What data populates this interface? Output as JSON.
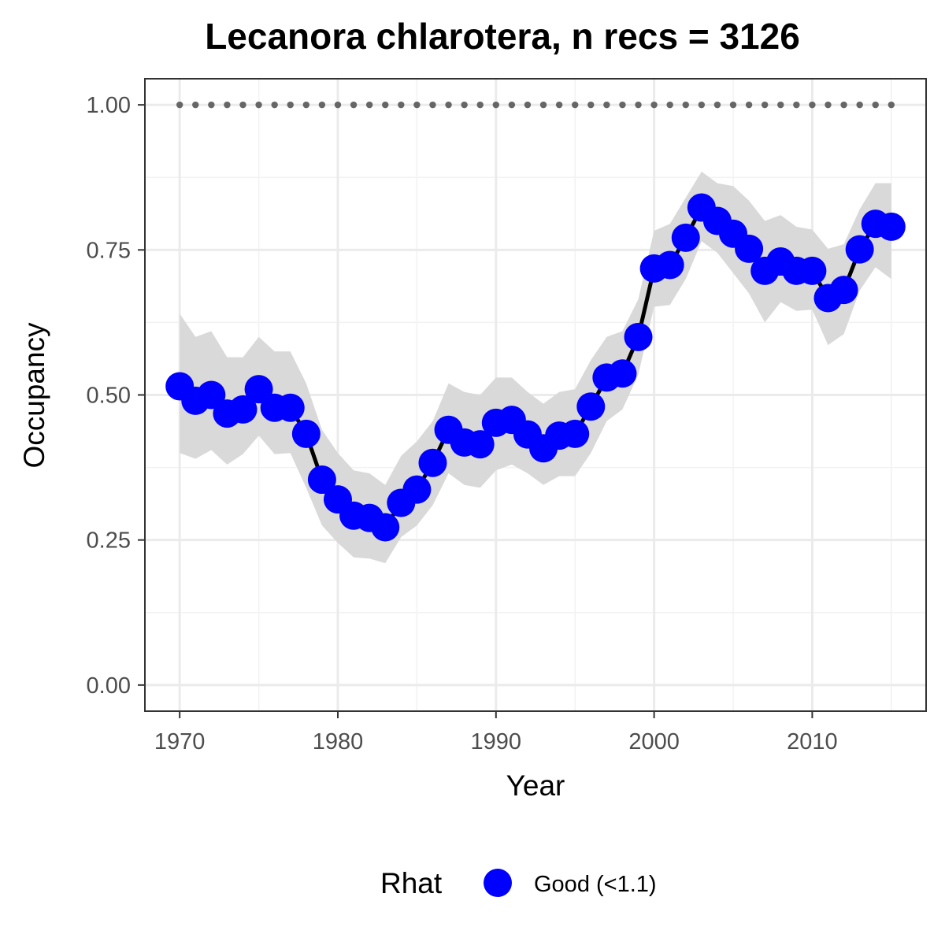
{
  "chart_data": {
    "type": "line",
    "title": "Lecanora chlarotera, n recs = 3126",
    "xlabel": "Year",
    "ylabel": "Occupancy",
    "xlim": [
      1967.8,
      2017.2
    ],
    "ylim": [
      -0.045,
      1.045
    ],
    "x_ticks": [
      1970,
      1980,
      1990,
      2000,
      2010
    ],
    "x_tick_labels": [
      "1970",
      "1980",
      "1990",
      "2000",
      "2010"
    ],
    "x_minor_ticks": [
      1975,
      1985,
      1995,
      2005,
      2015
    ],
    "y_ticks": [
      0,
      0.25,
      0.5,
      0.75,
      1
    ],
    "y_tick_labels": [
      "0.00",
      "0.25",
      "0.50",
      "0.75",
      "1.00"
    ],
    "y_minor_ticks": [
      0.125,
      0.375,
      0.625,
      0.875
    ],
    "grid": true,
    "reference_line": {
      "y": 1.0,
      "style": "dotted",
      "color": "#666666"
    },
    "series": [
      {
        "name": "Good (<1.1)",
        "color": "#0000ff",
        "x": [
          1970,
          1971,
          1972,
          1973,
          1974,
          1975,
          1976,
          1977,
          1978,
          1979,
          1980,
          1981,
          1982,
          1983,
          1984,
          1985,
          1986,
          1987,
          1988,
          1989,
          1990,
          1991,
          1992,
          1993,
          1994,
          1995,
          1996,
          1997,
          1998,
          1999,
          2000,
          2001,
          2002,
          2003,
          2004,
          2005,
          2006,
          2007,
          2008,
          2009,
          2010,
          2011,
          2012,
          2013,
          2014,
          2015
        ],
        "y": [
          0.515,
          0.49,
          0.5,
          0.468,
          0.475,
          0.51,
          0.478,
          0.478,
          0.433,
          0.354,
          0.32,
          0.292,
          0.288,
          0.272,
          0.314,
          0.337,
          0.383,
          0.44,
          0.418,
          0.415,
          0.452,
          0.457,
          0.432,
          0.408,
          0.43,
          0.433,
          0.48,
          0.53,
          0.537,
          0.6,
          0.718,
          0.724,
          0.771,
          0.823,
          0.8,
          0.778,
          0.752,
          0.714,
          0.73,
          0.714,
          0.714,
          0.667,
          0.681,
          0.751,
          0.795,
          0.79
        ],
        "lower": [
          0.4,
          0.39,
          0.405,
          0.38,
          0.398,
          0.43,
          0.398,
          0.4,
          0.34,
          0.275,
          0.245,
          0.22,
          0.218,
          0.21,
          0.255,
          0.275,
          0.31,
          0.365,
          0.345,
          0.34,
          0.37,
          0.38,
          0.365,
          0.345,
          0.36,
          0.36,
          0.4,
          0.455,
          0.475,
          0.535,
          0.652,
          0.655,
          0.7,
          0.765,
          0.745,
          0.71,
          0.675,
          0.625,
          0.66,
          0.645,
          0.647,
          0.586,
          0.605,
          0.68,
          0.72,
          0.7
        ],
        "upper": [
          0.64,
          0.6,
          0.61,
          0.565,
          0.565,
          0.6,
          0.575,
          0.575,
          0.52,
          0.44,
          0.4,
          0.37,
          0.365,
          0.345,
          0.395,
          0.42,
          0.455,
          0.52,
          0.505,
          0.5,
          0.53,
          0.53,
          0.505,
          0.485,
          0.505,
          0.51,
          0.56,
          0.6,
          0.61,
          0.665,
          0.783,
          0.795,
          0.84,
          0.885,
          0.865,
          0.86,
          0.835,
          0.8,
          0.81,
          0.79,
          0.785,
          0.752,
          0.76,
          0.82,
          0.865,
          0.865
        ]
      }
    ],
    "ribbon_color": "#d9d9d9",
    "line_color": "#000000"
  },
  "legend": {
    "title": "Rhat",
    "items": [
      {
        "label": "Good (<1.1)",
        "color": "#0000ff"
      }
    ],
    "position": "bottom"
  }
}
